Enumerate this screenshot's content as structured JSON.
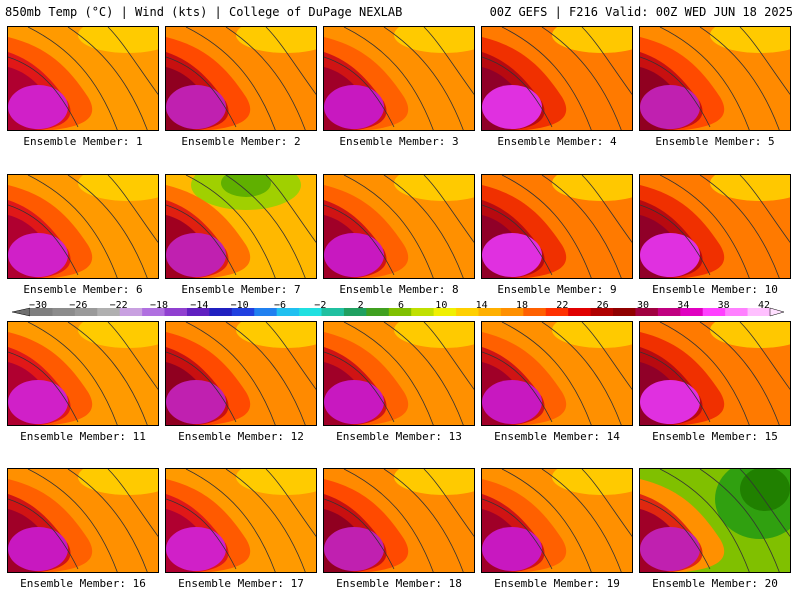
{
  "header": {
    "left_title": "850mb Temp (°C) | Wind (kts) | College of DuPage NEXLAB",
    "right_title": "00Z GEFS | F216 Valid: 00Z WED JUN 18 2025"
  },
  "panels": [
    {
      "label": "Ensemble Member: 1",
      "scheme": 0
    },
    {
      "label": "Ensemble Member: 2",
      "scheme": 1
    },
    {
      "label": "Ensemble Member: 3",
      "scheme": 2
    },
    {
      "label": "Ensemble Member: 4",
      "scheme": 3
    },
    {
      "label": "Ensemble Member: 5",
      "scheme": 1
    },
    {
      "label": "Ensemble Member: 6",
      "scheme": 0
    },
    {
      "label": "Ensemble Member: 7",
      "scheme": 4
    },
    {
      "label": "Ensemble Member: 8",
      "scheme": 2
    },
    {
      "label": "Ensemble Member: 9",
      "scheme": 3
    },
    {
      "label": "Ensemble Member: 10",
      "scheme": 3
    },
    {
      "label": "Ensemble Member: 11",
      "scheme": 0
    },
    {
      "label": "Ensemble Member: 12",
      "scheme": 1
    },
    {
      "label": "Ensemble Member: 13",
      "scheme": 2
    },
    {
      "label": "Ensemble Member: 14",
      "scheme": 2
    },
    {
      "label": "Ensemble Member: 15",
      "scheme": 3
    },
    {
      "label": "Ensemble Member: 16",
      "scheme": 2
    },
    {
      "label": "Ensemble Member: 17",
      "scheme": 0
    },
    {
      "label": "Ensemble Member: 18",
      "scheme": 1
    },
    {
      "label": "Ensemble Member: 19",
      "scheme": 2
    },
    {
      "label": "Ensemble Member: 20",
      "scheme": 5
    }
  ],
  "colorbar": {
    "ticks": [
      "−30",
      "−26",
      "−22",
      "−18",
      "−14",
      "−10",
      "−6",
      "−2",
      "2",
      "6",
      "10",
      "14",
      "18",
      "22",
      "26",
      "30",
      "34",
      "38",
      "42"
    ],
    "colors": [
      "#7f7f7f",
      "#8c8c8c",
      "#9a9a9a",
      "#b0b0b0",
      "#c8a0e0",
      "#b070e0",
      "#9040d0",
      "#6020c0",
      "#2020c0",
      "#2040e0",
      "#2080f0",
      "#20c0f0",
      "#20e0e0",
      "#20c0a0",
      "#20a060",
      "#40a020",
      "#80c000",
      "#c0e000",
      "#f0f000",
      "#ffd000",
      "#ffb000",
      "#ff9000",
      "#ff6000",
      "#ff3000",
      "#e00000",
      "#b00000",
      "#900000",
      "#a00040",
      "#c00080",
      "#e000c0",
      "#ff40ff",
      "#ff80ff",
      "#ffc0ff"
    ]
  }
}
